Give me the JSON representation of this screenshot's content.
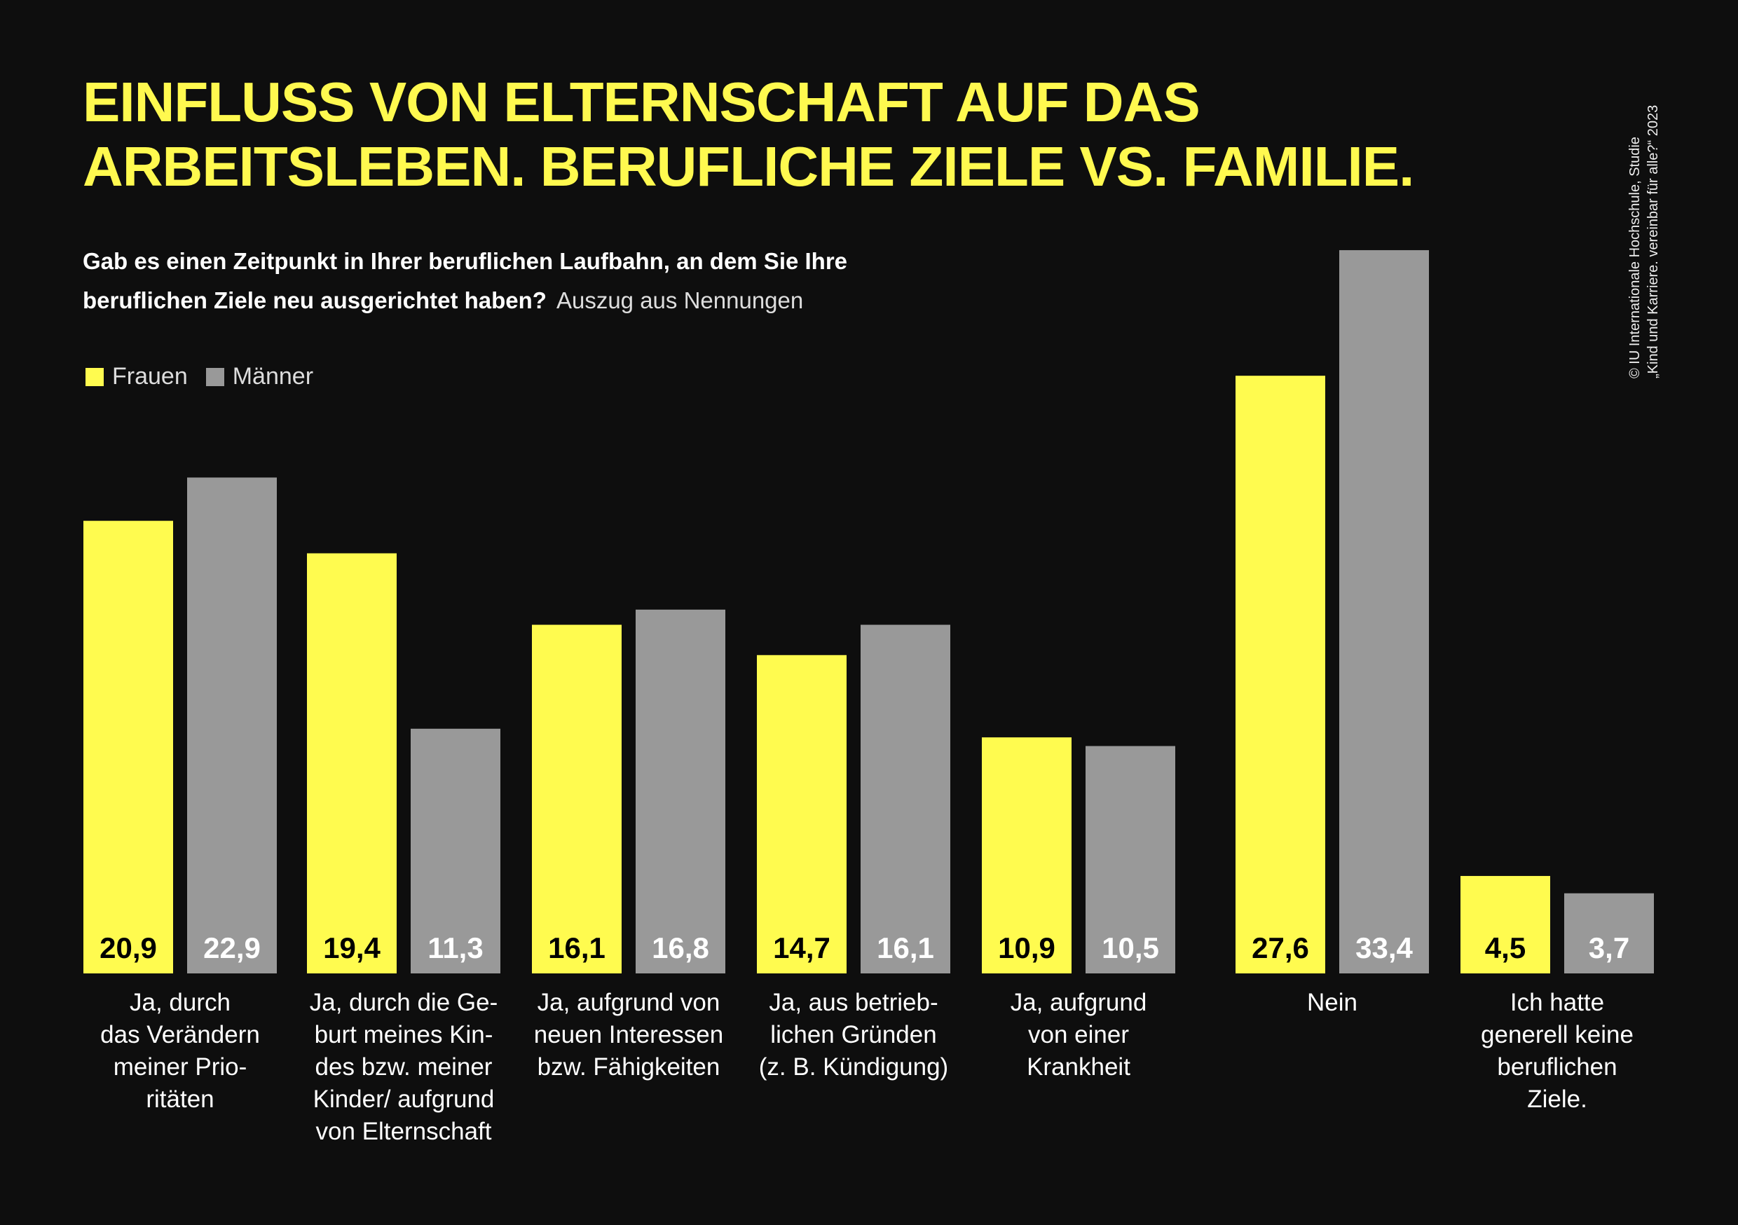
{
  "title_lines": [
    "EINFLUSS VON ELTERNSCHAFT AUF DAS",
    "ARBEITSLEBEN. BERUFLICHE ZIELE VS. FAMILIE."
  ],
  "question_lines": [
    "Gab es einen Zeitpunkt in Ihrer beruflichen Laufbahn, an dem Sie Ihre",
    "beruflichen Ziele neu ausgerichtet haben?"
  ],
  "note": "Auszug aus Nennungen",
  "source_lines": [
    "© IU Internationale Hochschule, Studie",
    "„Kind und Karriere. vereinbar für alle?“ 2023"
  ],
  "colors": {
    "frauen": "#fffb4f",
    "maenner": "#999999",
    "background": "#0e0e0e"
  },
  "chart_data": {
    "type": "bar",
    "title": "EINFLUSS VON ELTERNSCHAFT AUF DAS ARBEITSLEBEN. BERUFLICHE ZIELE VS. FAMILIE.",
    "legend_placement": "top-left",
    "grid": false,
    "ylim": [
      0,
      34
    ],
    "categories": [
      [
        "Ja, durch",
        "das Verändern",
        "meiner Prio-",
        "ritäten"
      ],
      [
        "Ja, durch die Ge-",
        "burt meines Kin-",
        "des bzw. meiner",
        "Kinder/ aufgrund",
        "von Elternschaft"
      ],
      [
        "Ja, aufgrund von",
        "neuen Interessen",
        "bzw. Fähigkeiten"
      ],
      [
        "Ja, aus betrieb-",
        "lichen Gründen",
        "(z. B. Kündigung)"
      ],
      [
        "Ja, aufgrund",
        "von einer",
        "Krankheit"
      ],
      [
        "Nein"
      ],
      [
        "Ich hatte",
        "generell keine",
        "beruflichen",
        "Ziele."
      ]
    ],
    "series": [
      {
        "name": "Frauen",
        "values": [
          20.9,
          19.4,
          16.1,
          14.7,
          10.9,
          27.6,
          4.5
        ],
        "labels": [
          "20,9",
          "19,4",
          "16,1",
          "14,7",
          "10,9",
          "27,6",
          "4,5"
        ]
      },
      {
        "name": "Männer",
        "values": [
          22.9,
          11.3,
          16.8,
          16.1,
          10.5,
          33.4,
          3.7
        ],
        "labels": [
          "22,9",
          "11,3",
          "16,8",
          "16,1",
          "10,5",
          "33,4",
          "3,7"
        ]
      }
    ]
  }
}
